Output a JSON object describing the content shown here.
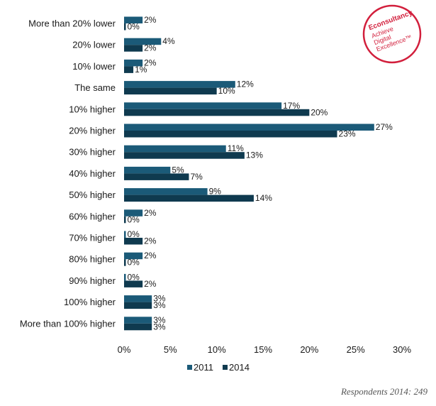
{
  "brand": {
    "name": "Econsultancy",
    "tagline_lines": [
      "Achieve",
      "Digital",
      "Excellence™"
    ],
    "color": "#d21f3c"
  },
  "footnote": "Respondents 2014: 249",
  "chart_data": {
    "type": "bar",
    "orientation": "horizontal",
    "categories": [
      "More than 20% lower",
      "20% lower",
      "10% lower",
      "The same",
      "10% higher",
      "20% higher",
      "30% higher",
      "40% higher",
      "50% higher",
      "60% higher",
      "70% higher",
      "80% higher",
      "90% higher",
      "100% higher",
      "More than 100% higher"
    ],
    "series": [
      {
        "name": "2011",
        "color": "#1b5a78",
        "values": [
          2,
          4,
          2,
          12,
          17,
          27,
          11,
          5,
          9,
          2,
          0,
          2,
          0,
          3,
          3
        ],
        "labels": [
          "2%",
          "4%",
          "2%",
          "12%",
          "17%",
          "27%",
          "11%",
          "5%",
          "9%",
          "2%",
          "0%",
          "2%",
          "0%",
          "3%",
          "3%"
        ]
      },
      {
        "name": "2014",
        "color": "#0f3a4f",
        "values": [
          0,
          2,
          1,
          10,
          20,
          23,
          13,
          7,
          14,
          0,
          2,
          0,
          2,
          3,
          3
        ],
        "labels": [
          "0%",
          "2%",
          "1%",
          "10%",
          "20%",
          "23%",
          "13%",
          "7%",
          "14%",
          "0%",
          "2%",
          "0%",
          "2%",
          "3%",
          "3%"
        ]
      }
    ],
    "xlim": [
      0,
      30
    ],
    "xticks": [
      0,
      5,
      10,
      15,
      20,
      25,
      30
    ],
    "xtick_labels": [
      "0%",
      "5%",
      "10%",
      "15%",
      "20%",
      "25%",
      "30%"
    ],
    "title": "",
    "xlabel": "",
    "ylabel": "",
    "grid": false,
    "legend_position": "bottom"
  }
}
